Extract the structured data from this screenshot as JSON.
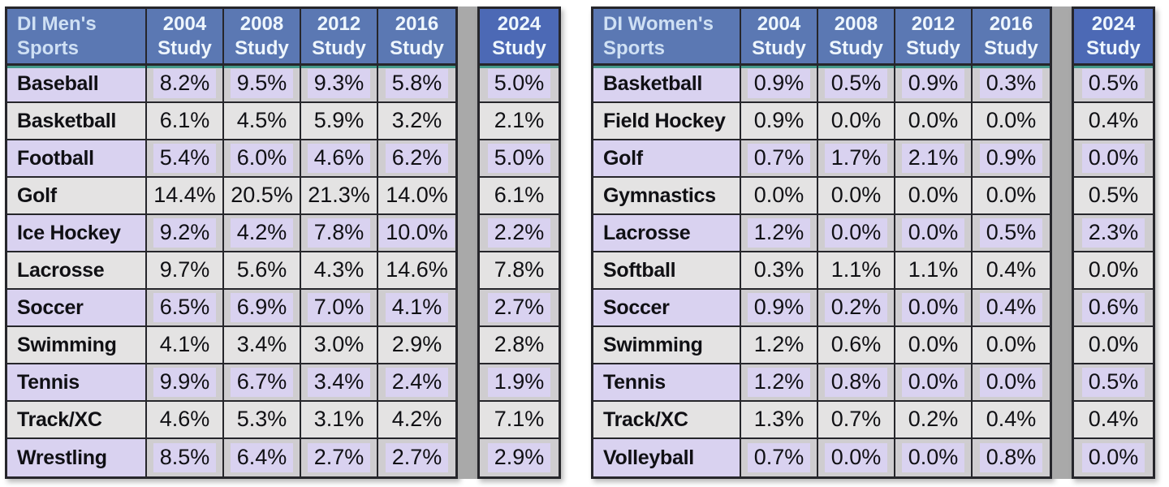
{
  "colors": {
    "header_blue": "#5b78b3",
    "header_blue_2024": "#4c69b5",
    "lavender": "#d9d2f0",
    "row_gray": "#e4e3e3",
    "cell_gray": "#cfcdd0",
    "gap_gray": "#a9a9a9",
    "teal_accent_line": "#44998a",
    "border_dark": "#26262b"
  },
  "tables": [
    {
      "corner": {
        "line1": "DI Men's",
        "line2": "Sports"
      },
      "years": [
        {
          "line1": "2004",
          "line2": "Study"
        },
        {
          "line1": "2008",
          "line2": "Study"
        },
        {
          "line1": "2012",
          "line2": "Study"
        },
        {
          "line1": "2016",
          "line2": "Study"
        }
      ],
      "study2024": {
        "line1": "2024",
        "line2": "Study"
      },
      "rows": [
        {
          "sport": "Baseball",
          "values": [
            "8.2%",
            "9.5%",
            "9.3%",
            "5.8%"
          ],
          "study_2024": "5.0%"
        },
        {
          "sport": "Basketball",
          "values": [
            "6.1%",
            "4.5%",
            "5.9%",
            "3.2%"
          ],
          "study_2024": "2.1%"
        },
        {
          "sport": "Football",
          "values": [
            "5.4%",
            "6.0%",
            "4.6%",
            "6.2%"
          ],
          "study_2024": "5.0%"
        },
        {
          "sport": "Golf",
          "values": [
            "14.4%",
            "20.5%",
            "21.3%",
            "14.0%"
          ],
          "study_2024": "6.1%"
        },
        {
          "sport": "Ice Hockey",
          "values": [
            "9.2%",
            "4.2%",
            "7.8%",
            "10.0%"
          ],
          "study_2024": "2.2%"
        },
        {
          "sport": "Lacrosse",
          "values": [
            "9.7%",
            "5.6%",
            "4.3%",
            "14.6%"
          ],
          "study_2024": "7.8%"
        },
        {
          "sport": "Soccer",
          "values": [
            "6.5%",
            "6.9%",
            "7.0%",
            "4.1%"
          ],
          "study_2024": "2.7%"
        },
        {
          "sport": "Swimming",
          "values": [
            "4.1%",
            "3.4%",
            "3.0%",
            "2.9%"
          ],
          "study_2024": "2.8%"
        },
        {
          "sport": "Tennis",
          "values": [
            "9.9%",
            "6.7%",
            "3.4%",
            "2.4%"
          ],
          "study_2024": "1.9%"
        },
        {
          "sport": "Track/XC",
          "values": [
            "4.6%",
            "5.3%",
            "3.1%",
            "4.2%"
          ],
          "study_2024": "7.1%"
        },
        {
          "sport": "Wrestling",
          "values": [
            "8.5%",
            "6.4%",
            "2.7%",
            "2.7%"
          ],
          "study_2024": "2.9%"
        }
      ]
    },
    {
      "corner": {
        "line1": "DI Women's",
        "line2": "Sports"
      },
      "years": [
        {
          "line1": "2004",
          "line2": "Study"
        },
        {
          "line1": "2008",
          "line2": "Study"
        },
        {
          "line1": "2012",
          "line2": "Study"
        },
        {
          "line1": "2016",
          "line2": "Study"
        }
      ],
      "study2024": {
        "line1": "2024",
        "line2": "Study"
      },
      "rows": [
        {
          "sport": "Basketball",
          "values": [
            "0.9%",
            "0.5%",
            "0.9%",
            "0.3%"
          ],
          "study_2024": "0.5%"
        },
        {
          "sport": "Field Hockey",
          "values": [
            "0.9%",
            "0.0%",
            "0.0%",
            "0.0%"
          ],
          "study_2024": "0.4%"
        },
        {
          "sport": "Golf",
          "values": [
            "0.7%",
            "1.7%",
            "2.1%",
            "0.9%"
          ],
          "study_2024": "0.0%"
        },
        {
          "sport": "Gymnastics",
          "values": [
            "0.0%",
            "0.0%",
            "0.0%",
            "0.0%"
          ],
          "study_2024": "0.5%"
        },
        {
          "sport": "Lacrosse",
          "values": [
            "1.2%",
            "0.0%",
            "0.0%",
            "0.5%"
          ],
          "study_2024": "2.3%"
        },
        {
          "sport": "Softball",
          "values": [
            "0.3%",
            "1.1%",
            "1.1%",
            "0.4%"
          ],
          "study_2024": "0.0%"
        },
        {
          "sport": "Soccer",
          "values": [
            "0.9%",
            "0.2%",
            "0.0%",
            "0.4%"
          ],
          "study_2024": "0.6%"
        },
        {
          "sport": "Swimming",
          "values": [
            "1.2%",
            "0.6%",
            "0.0%",
            "0.0%"
          ],
          "study_2024": "0.0%"
        },
        {
          "sport": "Tennis",
          "values": [
            "1.2%",
            "0.8%",
            "0.0%",
            "0.0%"
          ],
          "study_2024": "0.5%"
        },
        {
          "sport": "Track/XC",
          "values": [
            "1.3%",
            "0.7%",
            "0.2%",
            "0.4%"
          ],
          "study_2024": "0.4%"
        },
        {
          "sport": "Volleyball",
          "values": [
            "0.7%",
            "0.0%",
            "0.0%",
            "0.8%"
          ],
          "study_2024": "0.0%"
        }
      ]
    }
  ],
  "chart_data": [
    {
      "type": "table",
      "title": "DI Men's Sports",
      "columns": [
        "DI Men's Sports",
        "2004 Study",
        "2008 Study",
        "2012 Study",
        "2016 Study",
        "2024 Study"
      ],
      "rows": [
        [
          "Baseball",
          8.2,
          9.5,
          9.3,
          5.8,
          5.0
        ],
        [
          "Basketball",
          6.1,
          4.5,
          5.9,
          3.2,
          2.1
        ],
        [
          "Football",
          5.4,
          6.0,
          4.6,
          6.2,
          5.0
        ],
        [
          "Golf",
          14.4,
          20.5,
          21.3,
          14.0,
          6.1
        ],
        [
          "Ice Hockey",
          9.2,
          4.2,
          7.8,
          10.0,
          2.2
        ],
        [
          "Lacrosse",
          9.7,
          5.6,
          4.3,
          14.6,
          7.8
        ],
        [
          "Soccer",
          6.5,
          6.9,
          7.0,
          4.1,
          2.7
        ],
        [
          "Swimming",
          4.1,
          3.4,
          3.0,
          2.9,
          2.8
        ],
        [
          "Tennis",
          9.9,
          6.7,
          3.4,
          2.4,
          1.9
        ],
        [
          "Track/XC",
          4.6,
          5.3,
          3.1,
          4.2,
          7.1
        ],
        [
          "Wrestling",
          8.5,
          6.4,
          2.7,
          2.7,
          2.9
        ]
      ],
      "value_unit": "%"
    },
    {
      "type": "table",
      "title": "DI Women's Sports",
      "columns": [
        "DI Women's Sports",
        "2004 Study",
        "2008 Study",
        "2012 Study",
        "2016 Study",
        "2024 Study"
      ],
      "rows": [
        [
          "Basketball",
          0.9,
          0.5,
          0.9,
          0.3,
          0.5
        ],
        [
          "Field Hockey",
          0.9,
          0.0,
          0.0,
          0.0,
          0.4
        ],
        [
          "Golf",
          0.7,
          1.7,
          2.1,
          0.9,
          0.0
        ],
        [
          "Gymnastics",
          0.0,
          0.0,
          0.0,
          0.0,
          0.5
        ],
        [
          "Lacrosse",
          1.2,
          0.0,
          0.0,
          0.5,
          2.3
        ],
        [
          "Softball",
          0.3,
          1.1,
          1.1,
          0.4,
          0.0
        ],
        [
          "Soccer",
          0.9,
          0.2,
          0.0,
          0.4,
          0.6
        ],
        [
          "Swimming",
          1.2,
          0.6,
          0.0,
          0.0,
          0.0
        ],
        [
          "Tennis",
          1.2,
          0.8,
          0.0,
          0.0,
          0.5
        ],
        [
          "Track/XC",
          1.3,
          0.7,
          0.2,
          0.4,
          0.4
        ],
        [
          "Volleyball",
          0.7,
          0.0,
          0.0,
          0.8,
          0.0
        ]
      ],
      "value_unit": "%"
    }
  ]
}
